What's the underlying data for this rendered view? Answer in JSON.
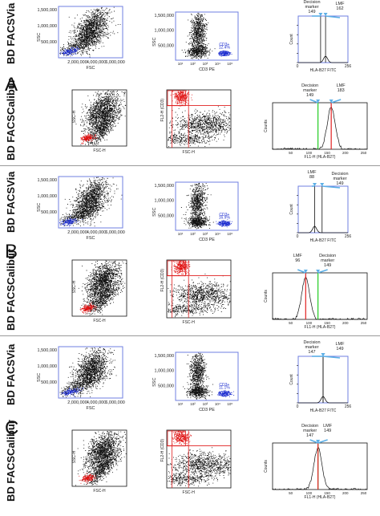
{
  "panels": [
    {
      "letter": "A",
      "instrument_top": "BD FACSVia",
      "instrument_bottom": "BD FACSCalibur",
      "via_fsc_ticks": [
        "2,000,000",
        "4,000,000",
        "6,000,000"
      ],
      "via_ssc_ticks": [
        "500,000",
        "1,000,000",
        "1,500,000"
      ],
      "via_fsc_label": "FSC",
      "via_ssc_label": "SSC",
      "via_cd3_label": "CD3 PE",
      "via_cd3_gate_label": "CD3+",
      "via_cd3_gate_pct": "12.4%",
      "via_hist_xlabel": "HLA-B27 FITC",
      "via_hist_ylabel": "Count",
      "via_hist_xmax": "256",
      "via_hist_xmin": "0",
      "via_callout_left": "Decision\nmarker\n149",
      "via_callout_right": "LMF\n162",
      "cal_fsc_label": "FSC-H",
      "cal_ssc_label": "SSC-H",
      "cal_fl2_label": "FL2-H (CD3)",
      "cal_hist_xlabel": "FL1-H (HLA-B27)",
      "cal_hist_ylabel": "Counts",
      "cal_callout_left": "Decision\nmarker\n149",
      "cal_callout_right": "LMF\n183"
    },
    {
      "letter": "B",
      "instrument_top": "BD FACSVia",
      "instrument_bottom": "BD FACSCalibur",
      "via_fsc_ticks": [
        "2,000,000",
        "4,000,000",
        "6,000,000"
      ],
      "via_ssc_ticks": [
        "500,000",
        "1,000,000",
        "1,500,000"
      ],
      "via_fsc_label": "FSC",
      "via_ssc_label": "SSC",
      "via_cd3_label": "CD3 PE",
      "via_cd3_gate_label": "CD3+",
      "via_cd3_gate_pct": "16.9%",
      "via_hist_xlabel": "HLA-B27 FITC",
      "via_hist_ylabel": "Count",
      "via_hist_xmax": "256",
      "via_hist_xmin": "0",
      "via_callout_left": "LMF\n88",
      "via_callout_right": "Decision\nmarker\n149",
      "cal_fsc_label": "FSC-H",
      "cal_ssc_label": "SSC-H",
      "cal_fl2_label": "FL2-H (CD3)",
      "cal_hist_xlabel": "FL1-H (HLA-B27)",
      "cal_hist_ylabel": "Counts",
      "cal_callout_left": "LMF\n96",
      "cal_callout_right": "Decision\nmarker\n149"
    },
    {
      "letter": "C",
      "instrument_top": "BD FACSVia",
      "instrument_bottom": "BD FACSCalibur",
      "via_fsc_ticks": [
        "2,000,000",
        "4,000,000",
        "6,000,000"
      ],
      "via_ssc_ticks": [
        "500,000",
        "1,000,000",
        "1,500,000"
      ],
      "via_fsc_label": "FSC",
      "via_ssc_label": "SSC",
      "via_cd3_label": "CD3 PE",
      "via_cd3_gate_label": "CD3+",
      "via_cd3_gate_pct": "11.1%",
      "via_hist_xlabel": "HLA-B27 FITC",
      "via_hist_ylabel": "Count",
      "via_hist_xmax": "256",
      "via_hist_xmin": "0",
      "via_callout_left": "Decision\nmarker\n147",
      "via_callout_right": "LMF\n149",
      "cal_fsc_label": "FSC-H",
      "cal_ssc_label": "SSC-H",
      "cal_fl2_label": "FL2-H (CD3)",
      "cal_hist_xlabel": "FL1-H (HLA-B27)",
      "cal_hist_ylabel": "Counts",
      "cal_callout_left": "Decision\nmarker\n147",
      "cal_callout_right": "LMF\n149"
    }
  ],
  "colors": {
    "frame_blue": "#6f7fe0",
    "gate_red": "#e02020",
    "decision_green": "#22cc22",
    "lmf_red": "#e02020",
    "arrow_blue": "#5aaee6",
    "events": "#111111",
    "blue_events": "#2030d0",
    "red_events": "#e01010"
  },
  "chart_data": [
    {
      "type": "scatter",
      "panel": "A",
      "instrument": "BD FACSVia",
      "xlabel": "FSC",
      "ylabel": "SSC",
      "xticks": [
        "2,000,000",
        "4,000,000",
        "6,000,000"
      ],
      "yticks": [
        "500,000",
        "1,000,000",
        "1,500,000"
      ]
    },
    {
      "type": "scatter",
      "panel": "A",
      "instrument": "BD FACSVia",
      "xlabel": "CD3 PE",
      "ylabel": "SSC",
      "annotation": "CD3+ 12.4%"
    },
    {
      "type": "line",
      "panel": "A",
      "instrument": "BD FACSVia",
      "xlabel": "HLA-B27 FITC",
      "ylabel": "Count",
      "xlim": [
        0,
        256
      ],
      "markers": {
        "decision_marker": 149,
        "LMF": 162
      }
    },
    {
      "type": "line",
      "panel": "A",
      "instrument": "BD FACSCalibur",
      "xlabel": "FL1-H (HLA-B27)",
      "ylabel": "Counts",
      "markers": {
        "decision_marker": 149,
        "LMF": 183
      }
    },
    {
      "type": "scatter",
      "panel": "B",
      "instrument": "BD FACSVia",
      "xlabel": "CD3 PE",
      "ylabel": "SSC",
      "annotation": "CD3+ 16.9%"
    },
    {
      "type": "line",
      "panel": "B",
      "instrument": "BD FACSVia",
      "xlabel": "HLA-B27 FITC",
      "ylabel": "Count",
      "xlim": [
        0,
        256
      ],
      "markers": {
        "decision_marker": 149,
        "LMF": 88
      }
    },
    {
      "type": "line",
      "panel": "B",
      "instrument": "BD FACSCalibur",
      "xlabel": "FL1-H (HLA-B27)",
      "ylabel": "Counts",
      "markers": {
        "decision_marker": 149,
        "LMF": 96
      }
    },
    {
      "type": "scatter",
      "panel": "C",
      "instrument": "BD FACSVia",
      "xlabel": "CD3 PE",
      "ylabel": "SSC",
      "annotation": "CD3+ 11.1%"
    },
    {
      "type": "line",
      "panel": "C",
      "instrument": "BD FACSVia",
      "xlabel": "HLA-B27 FITC",
      "ylabel": "Count",
      "xlim": [
        0,
        256
      ],
      "markers": {
        "decision_marker": 147,
        "LMF": 149
      }
    },
    {
      "type": "line",
      "panel": "C",
      "instrument": "BD FACSCalibur",
      "xlabel": "FL1-H (HLA-B27)",
      "ylabel": "Counts",
      "markers": {
        "decision_marker": 147,
        "LMF": 149
      }
    }
  ]
}
